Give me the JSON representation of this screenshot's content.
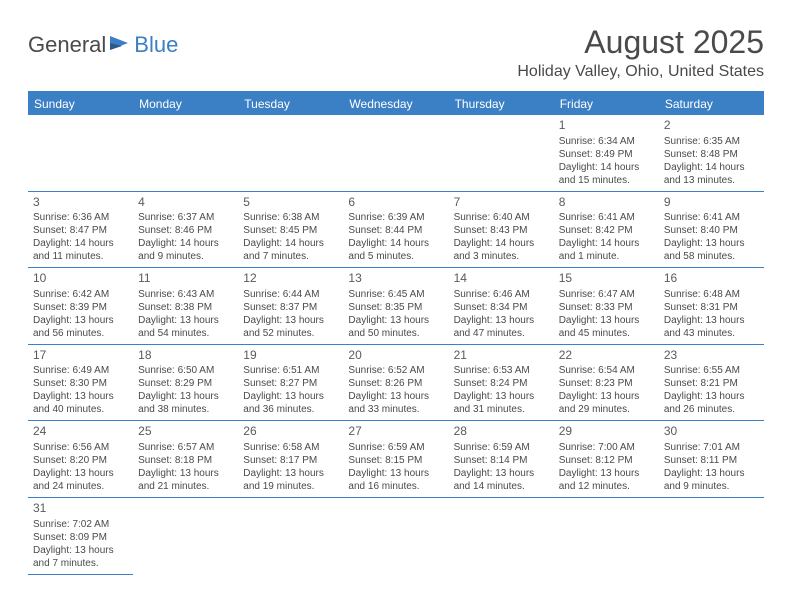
{
  "logo": {
    "text1": "General",
    "text2": "Blue"
  },
  "title": "August 2025",
  "location": "Holiday Valley, Ohio, United States",
  "colors": {
    "accent": "#3b7fc4",
    "text": "#4a4a4a",
    "bg": "#ffffff"
  },
  "weekdays": [
    "Sunday",
    "Monday",
    "Tuesday",
    "Wednesday",
    "Thursday",
    "Friday",
    "Saturday"
  ],
  "weeks": [
    [
      null,
      null,
      null,
      null,
      null,
      {
        "n": "1",
        "sr": "Sunrise: 6:34 AM",
        "ss": "Sunset: 8:49 PM",
        "d1": "Daylight: 14 hours",
        "d2": "and 15 minutes."
      },
      {
        "n": "2",
        "sr": "Sunrise: 6:35 AM",
        "ss": "Sunset: 8:48 PM",
        "d1": "Daylight: 14 hours",
        "d2": "and 13 minutes."
      }
    ],
    [
      {
        "n": "3",
        "sr": "Sunrise: 6:36 AM",
        "ss": "Sunset: 8:47 PM",
        "d1": "Daylight: 14 hours",
        "d2": "and 11 minutes."
      },
      {
        "n": "4",
        "sr": "Sunrise: 6:37 AM",
        "ss": "Sunset: 8:46 PM",
        "d1": "Daylight: 14 hours",
        "d2": "and 9 minutes."
      },
      {
        "n": "5",
        "sr": "Sunrise: 6:38 AM",
        "ss": "Sunset: 8:45 PM",
        "d1": "Daylight: 14 hours",
        "d2": "and 7 minutes."
      },
      {
        "n": "6",
        "sr": "Sunrise: 6:39 AM",
        "ss": "Sunset: 8:44 PM",
        "d1": "Daylight: 14 hours",
        "d2": "and 5 minutes."
      },
      {
        "n": "7",
        "sr": "Sunrise: 6:40 AM",
        "ss": "Sunset: 8:43 PM",
        "d1": "Daylight: 14 hours",
        "d2": "and 3 minutes."
      },
      {
        "n": "8",
        "sr": "Sunrise: 6:41 AM",
        "ss": "Sunset: 8:42 PM",
        "d1": "Daylight: 14 hours",
        "d2": "and 1 minute."
      },
      {
        "n": "9",
        "sr": "Sunrise: 6:41 AM",
        "ss": "Sunset: 8:40 PM",
        "d1": "Daylight: 13 hours",
        "d2": "and 58 minutes."
      }
    ],
    [
      {
        "n": "10",
        "sr": "Sunrise: 6:42 AM",
        "ss": "Sunset: 8:39 PM",
        "d1": "Daylight: 13 hours",
        "d2": "and 56 minutes."
      },
      {
        "n": "11",
        "sr": "Sunrise: 6:43 AM",
        "ss": "Sunset: 8:38 PM",
        "d1": "Daylight: 13 hours",
        "d2": "and 54 minutes."
      },
      {
        "n": "12",
        "sr": "Sunrise: 6:44 AM",
        "ss": "Sunset: 8:37 PM",
        "d1": "Daylight: 13 hours",
        "d2": "and 52 minutes."
      },
      {
        "n": "13",
        "sr": "Sunrise: 6:45 AM",
        "ss": "Sunset: 8:35 PM",
        "d1": "Daylight: 13 hours",
        "d2": "and 50 minutes."
      },
      {
        "n": "14",
        "sr": "Sunrise: 6:46 AM",
        "ss": "Sunset: 8:34 PM",
        "d1": "Daylight: 13 hours",
        "d2": "and 47 minutes."
      },
      {
        "n": "15",
        "sr": "Sunrise: 6:47 AM",
        "ss": "Sunset: 8:33 PM",
        "d1": "Daylight: 13 hours",
        "d2": "and 45 minutes."
      },
      {
        "n": "16",
        "sr": "Sunrise: 6:48 AM",
        "ss": "Sunset: 8:31 PM",
        "d1": "Daylight: 13 hours",
        "d2": "and 43 minutes."
      }
    ],
    [
      {
        "n": "17",
        "sr": "Sunrise: 6:49 AM",
        "ss": "Sunset: 8:30 PM",
        "d1": "Daylight: 13 hours",
        "d2": "and 40 minutes."
      },
      {
        "n": "18",
        "sr": "Sunrise: 6:50 AM",
        "ss": "Sunset: 8:29 PM",
        "d1": "Daylight: 13 hours",
        "d2": "and 38 minutes."
      },
      {
        "n": "19",
        "sr": "Sunrise: 6:51 AM",
        "ss": "Sunset: 8:27 PM",
        "d1": "Daylight: 13 hours",
        "d2": "and 36 minutes."
      },
      {
        "n": "20",
        "sr": "Sunrise: 6:52 AM",
        "ss": "Sunset: 8:26 PM",
        "d1": "Daylight: 13 hours",
        "d2": "and 33 minutes."
      },
      {
        "n": "21",
        "sr": "Sunrise: 6:53 AM",
        "ss": "Sunset: 8:24 PM",
        "d1": "Daylight: 13 hours",
        "d2": "and 31 minutes."
      },
      {
        "n": "22",
        "sr": "Sunrise: 6:54 AM",
        "ss": "Sunset: 8:23 PM",
        "d1": "Daylight: 13 hours",
        "d2": "and 29 minutes."
      },
      {
        "n": "23",
        "sr": "Sunrise: 6:55 AM",
        "ss": "Sunset: 8:21 PM",
        "d1": "Daylight: 13 hours",
        "d2": "and 26 minutes."
      }
    ],
    [
      {
        "n": "24",
        "sr": "Sunrise: 6:56 AM",
        "ss": "Sunset: 8:20 PM",
        "d1": "Daylight: 13 hours",
        "d2": "and 24 minutes."
      },
      {
        "n": "25",
        "sr": "Sunrise: 6:57 AM",
        "ss": "Sunset: 8:18 PM",
        "d1": "Daylight: 13 hours",
        "d2": "and 21 minutes."
      },
      {
        "n": "26",
        "sr": "Sunrise: 6:58 AM",
        "ss": "Sunset: 8:17 PM",
        "d1": "Daylight: 13 hours",
        "d2": "and 19 minutes."
      },
      {
        "n": "27",
        "sr": "Sunrise: 6:59 AM",
        "ss": "Sunset: 8:15 PM",
        "d1": "Daylight: 13 hours",
        "d2": "and 16 minutes."
      },
      {
        "n": "28",
        "sr": "Sunrise: 6:59 AM",
        "ss": "Sunset: 8:14 PM",
        "d1": "Daylight: 13 hours",
        "d2": "and 14 minutes."
      },
      {
        "n": "29",
        "sr": "Sunrise: 7:00 AM",
        "ss": "Sunset: 8:12 PM",
        "d1": "Daylight: 13 hours",
        "d2": "and 12 minutes."
      },
      {
        "n": "30",
        "sr": "Sunrise: 7:01 AM",
        "ss": "Sunset: 8:11 PM",
        "d1": "Daylight: 13 hours",
        "d2": "and 9 minutes."
      }
    ],
    [
      {
        "n": "31",
        "sr": "Sunrise: 7:02 AM",
        "ss": "Sunset: 8:09 PM",
        "d1": "Daylight: 13 hours",
        "d2": "and 7 minutes."
      },
      null,
      null,
      null,
      null,
      null,
      null
    ]
  ]
}
